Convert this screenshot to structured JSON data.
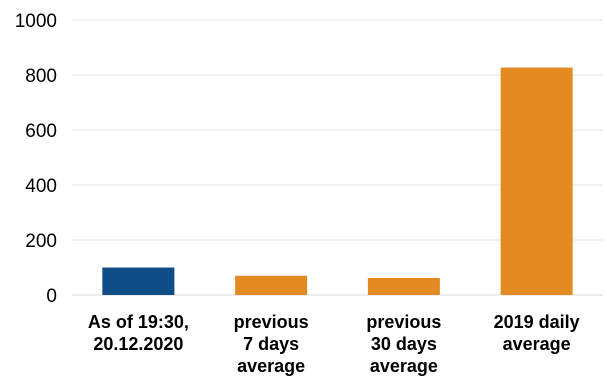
{
  "chart_data": {
    "type": "bar",
    "title": "",
    "xlabel": "",
    "ylabel": "",
    "ylim": [
      0,
      1000
    ],
    "yticks": [
      0,
      200,
      400,
      600,
      800,
      1000
    ],
    "grid": true,
    "legend": "none",
    "categories": [
      [
        "As of 19:30,",
        "20.12.2020"
      ],
      [
        "previous",
        "7 days",
        "average"
      ],
      [
        "previous",
        "30 days",
        "average"
      ],
      [
        "2019 daily",
        "average"
      ]
    ],
    "values": [
      100,
      70,
      62,
      827
    ],
    "bar_colors": [
      "#0e4d85",
      "#e38a22",
      "#e38a22",
      "#e38a22"
    ]
  }
}
